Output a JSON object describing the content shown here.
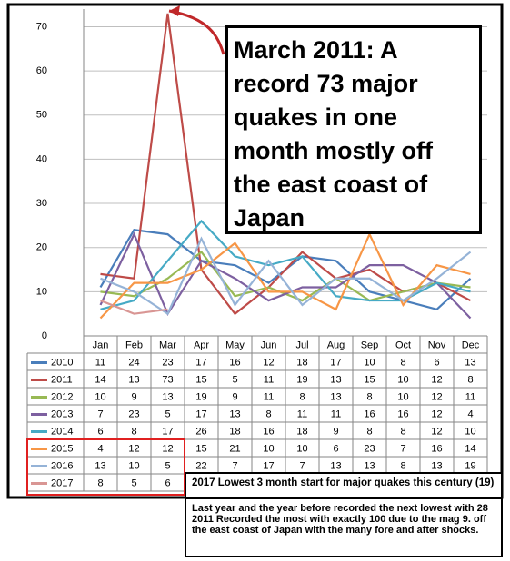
{
  "chart_data": {
    "type": "line",
    "categories": [
      "Jan",
      "Feb",
      "Mar",
      "Apr",
      "May",
      "Jun",
      "Jul",
      "Aug",
      "Sep",
      "Oct",
      "Nov",
      "Dec"
    ],
    "series": [
      {
        "name": "2010",
        "color": "#4a7ebb",
        "values": [
          11,
          24,
          23,
          17,
          16,
          12,
          18,
          17,
          10,
          8,
          6,
          13
        ]
      },
      {
        "name": "2011",
        "color": "#be4b48",
        "values": [
          14,
          13,
          73,
          15,
          5,
          11,
          19,
          13,
          15,
          10,
          12,
          8
        ]
      },
      {
        "name": "2012",
        "color": "#98b954",
        "values": [
          10,
          9,
          13,
          19,
          9,
          11,
          8,
          13,
          8,
          10,
          12,
          11
        ]
      },
      {
        "name": "2013",
        "color": "#7d60a0",
        "values": [
          7,
          23,
          5,
          17,
          13,
          8,
          11,
          11,
          16,
          16,
          12,
          4
        ]
      },
      {
        "name": "2014",
        "color": "#46aac5",
        "values": [
          6,
          8,
          17,
          26,
          18,
          16,
          18,
          9,
          8,
          8,
          12,
          10
        ]
      },
      {
        "name": "2015",
        "color": "#f79646",
        "values": [
          4,
          12,
          12,
          15,
          21,
          10,
          10,
          6,
          23,
          7,
          16,
          14
        ]
      },
      {
        "name": "2016",
        "color": "#95b3d7",
        "values": [
          13,
          10,
          5,
          22,
          7,
          17,
          7,
          13,
          13,
          8,
          13,
          19
        ]
      },
      {
        "name": "2017",
        "color": "#d99694",
        "values": [
          8,
          5,
          6,
          null,
          null,
          null,
          null,
          null,
          null,
          null,
          null,
          null
        ]
      }
    ],
    "ylim": [
      0,
      74
    ],
    "yticks": [
      0,
      10,
      20,
      30,
      40,
      50,
      60,
      70
    ],
    "grid": true,
    "annotations": [
      "March 2011: A record 73 major quakes in one month mostly off the east coast of Japan",
      "2017 Lowest 3 month start for major quakes this century (19)",
      "Last year and the year before recorded the next lowest with 28",
      "2011 Recorded the most with exactly 100 due to the mag 9. off the east coast of Japan with the many fore and after shocks."
    ]
  }
}
